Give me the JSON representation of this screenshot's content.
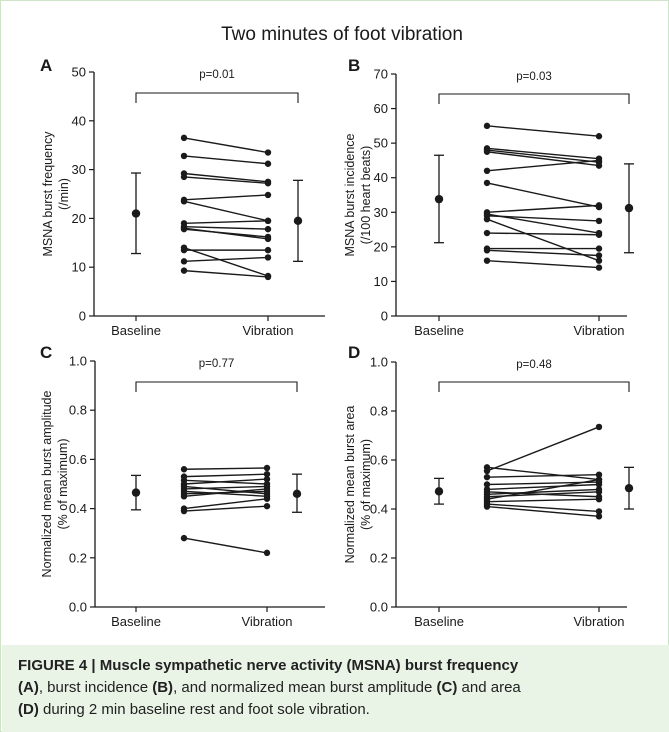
{
  "figure_title": "Two minutes of foot vibration",
  "caption": {
    "label": "FIGURE 4 | ",
    "lead": "Muscle sympathetic nerve activity (MSNA) burst frequency",
    "a": "(A)",
    "t1": ", burst incidence ",
    "b": "(B)",
    "t2": ", and normalized mean burst amplitude ",
    "c": "(C)",
    "t3": " and area ",
    "d": "(D)",
    "t4": " during 2 min baseline rest and foot sole vibration."
  },
  "chart_data": [
    {
      "panel": "A",
      "type": "scatter",
      "ylabel": "MSNA burst frequency (/min)",
      "ylabel_lines": [
        "MSNA burst frequency",
        "(/min)"
      ],
      "categories": [
        "Baseline",
        "Vibration"
      ],
      "ylim": [
        0,
        50
      ],
      "yticks": [
        0,
        10,
        20,
        30,
        40,
        50
      ],
      "ytick_labels": [
        "0",
        "10",
        "20",
        "30",
        "40",
        "50"
      ],
      "significance": "p=0.01",
      "paired_values": [
        [
          36.5,
          33.5
        ],
        [
          32.8,
          31.2
        ],
        [
          29.2,
          27.5
        ],
        [
          28.5,
          27.2
        ],
        [
          23.8,
          24.8
        ],
        [
          23.5,
          19.5
        ],
        [
          19.0,
          19.5
        ],
        [
          18.3,
          17.8
        ],
        [
          18.0,
          15.8
        ],
        [
          17.8,
          16.2
        ],
        [
          14.0,
          8.2
        ],
        [
          13.5,
          13.5
        ],
        [
          11.2,
          12.0
        ],
        [
          9.3,
          8.0
        ]
      ],
      "summary": {
        "mean": [
          21.0,
          19.5
        ],
        "error": [
          [
            12.8,
            29.3
          ],
          [
            11.2,
            27.8
          ]
        ]
      }
    },
    {
      "panel": "B",
      "type": "scatter",
      "ylabel": "MSNA burst incidence (/100 heart beats)",
      "ylabel_lines": [
        "MSNA burst incidence",
        "(/100 heart beats)"
      ],
      "categories": [
        "Baseline",
        "Vibration"
      ],
      "ylim": [
        0,
        70
      ],
      "yticks": [
        0,
        10,
        20,
        30,
        40,
        50,
        60,
        70
      ],
      "ytick_labels": [
        "0",
        "10",
        "20",
        "30",
        "40",
        "50",
        "60",
        "70"
      ],
      "significance": "p=0.03",
      "paired_values": [
        [
          55.0,
          52.0
        ],
        [
          48.5,
          45.5
        ],
        [
          48.0,
          44.5
        ],
        [
          47.5,
          43.5
        ],
        [
          42.0,
          45.0
        ],
        [
          38.5,
          31.5
        ],
        [
          30.0,
          32.0
        ],
        [
          29.5,
          24.0
        ],
        [
          29.0,
          27.5
        ],
        [
          28.0,
          16.0
        ],
        [
          24.0,
          23.5
        ],
        [
          19.5,
          19.5
        ],
        [
          19.0,
          17.5
        ],
        [
          16.0,
          14.0
        ]
      ],
      "summary": {
        "mean": [
          33.8,
          31.2
        ],
        "error": [
          [
            21.2,
            46.5
          ],
          [
            18.3,
            44.0
          ]
        ]
      }
    },
    {
      "panel": "C",
      "type": "scatter",
      "ylabel": "Normalized mean burst amplitude (% of maximum)",
      "ylabel_lines": [
        "Normalized mean burst amplitude",
        "(% of maximum)"
      ],
      "categories": [
        "Baseline",
        "Vibration"
      ],
      "ylim": [
        0,
        1.0
      ],
      "yticks": [
        0,
        0.2,
        0.4,
        0.6,
        0.8,
        1.0
      ],
      "ytick_labels": [
        "0.0",
        "0.2",
        "0.4",
        "0.6",
        "0.8",
        "1.0"
      ],
      "significance": "p=0.77",
      "paired_values": [
        [
          0.56,
          0.565
        ],
        [
          0.53,
          0.54
        ],
        [
          0.515,
          0.5
        ],
        [
          0.5,
          0.52
        ],
        [
          0.49,
          0.46
        ],
        [
          0.48,
          0.49
        ],
        [
          0.47,
          0.45
        ],
        [
          0.46,
          0.47
        ],
        [
          0.45,
          0.48
        ],
        [
          0.4,
          0.44
        ],
        [
          0.39,
          0.41
        ],
        [
          0.28,
          0.22
        ]
      ],
      "summary": {
        "mean": [
          0.465,
          0.46
        ],
        "error": [
          [
            0.395,
            0.535
          ],
          [
            0.385,
            0.54
          ]
        ]
      }
    },
    {
      "panel": "D",
      "type": "scatter",
      "ylabel": "Normalized mean burst area (% of maximum)",
      "ylabel_lines": [
        "Normalized mean burst area",
        "(% of maximum)"
      ],
      "categories": [
        "Baseline",
        "Vibration"
      ],
      "ylim": [
        0,
        1.0
      ],
      "yticks": [
        0,
        0.2,
        0.4,
        0.6,
        0.8,
        1.0
      ],
      "ytick_labels": [
        "0.0",
        "0.2",
        "0.4",
        "0.6",
        "0.8",
        "1.0"
      ],
      "significance": "p=0.48",
      "paired_values": [
        [
          0.57,
          0.52
        ],
        [
          0.555,
          0.735
        ],
        [
          0.53,
          0.54
        ],
        [
          0.5,
          0.51
        ],
        [
          0.48,
          0.5
        ],
        [
          0.47,
          0.45
        ],
        [
          0.46,
          0.48
        ],
        [
          0.45,
          0.47
        ],
        [
          0.44,
          0.52
        ],
        [
          0.43,
          0.44
        ],
        [
          0.42,
          0.39
        ],
        [
          0.41,
          0.37
        ]
      ],
      "summary": {
        "mean": [
          0.472,
          0.485
        ],
        "error": [
          [
            0.42,
            0.525
          ],
          [
            0.4,
            0.57
          ]
        ]
      }
    }
  ]
}
